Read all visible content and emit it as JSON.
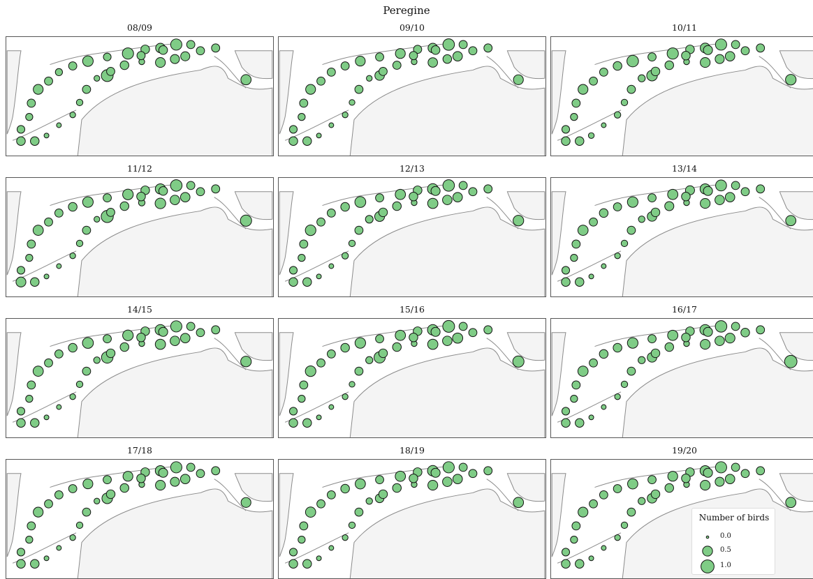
{
  "title": "Peregine",
  "colors": {
    "marker_fill": "#7fcc86",
    "marker_edge": "#111111",
    "land": "#f4f4f4",
    "coast": "#8a8a8a",
    "sea": "#ffffff"
  },
  "legend": {
    "title": "Number of birds",
    "entries": [
      {
        "label": "0.0",
        "value": 0.0
      },
      {
        "label": "0.5",
        "value": 0.5
      },
      {
        "label": "1.0",
        "value": 1.0
      }
    ]
  },
  "chart_data": {
    "type": "bubble-map",
    "title": "Peregine",
    "size_variable": "Number of birds",
    "size_range": [
      0.0,
      1.0
    ],
    "legend_placement": "bottom-right",
    "site_count": 34,
    "panels": [
      {
        "season": "08/09",
        "values": [
          0.35,
          0.35,
          0.25,
          0.2,
          0.3,
          0.5,
          0.3,
          0.2,
          0.3,
          0.6,
          0.25,
          0.7,
          0.35,
          0.45,
          0.7,
          0.3,
          0.4,
          0.5,
          0.1,
          0.8,
          0.3,
          0.15,
          0.1,
          0.05,
          0.05,
          0.1,
          0.3,
          0.35,
          0.3,
          0.35,
          0.4,
          0.3,
          0.3,
          0.55
        ]
      },
      {
        "season": "09/10",
        "values": [
          0.35,
          0.35,
          0.25,
          0.2,
          0.3,
          0.5,
          0.3,
          0.3,
          0.3,
          0.5,
          0.3,
          0.5,
          0.3,
          0.45,
          0.75,
          0.3,
          0.35,
          0.45,
          0.1,
          0.45,
          0.3,
          0.1,
          0.1,
          0.05,
          0.05,
          0.1,
          0.3,
          0.3,
          0.3,
          0.35,
          0.45,
          0.3,
          0.3,
          0.5
        ]
      },
      {
        "season": "10/11",
        "values": [
          0.35,
          0.35,
          0.25,
          0.2,
          0.3,
          0.5,
          0.3,
          0.3,
          0.35,
          0.75,
          0.3,
          0.7,
          0.35,
          0.5,
          0.7,
          0.3,
          0.4,
          0.5,
          0.1,
          0.6,
          0.3,
          0.15,
          0.15,
          0.05,
          0.1,
          0.2,
          0.35,
          0.35,
          0.35,
          0.4,
          0.45,
          0.3,
          0.3,
          0.6
        ]
      },
      {
        "season": "11/12",
        "values": [
          0.5,
          0.35,
          0.25,
          0.2,
          0.3,
          0.55,
          0.3,
          0.3,
          0.35,
          0.6,
          0.3,
          0.6,
          0.35,
          0.55,
          0.75,
          0.3,
          0.45,
          0.6,
          0.15,
          0.85,
          0.3,
          0.15,
          0.1,
          0.05,
          0.05,
          0.1,
          0.3,
          0.35,
          0.35,
          0.35,
          0.45,
          0.3,
          0.3,
          0.7
        ]
      },
      {
        "season": "12/13",
        "values": [
          0.35,
          0.35,
          0.25,
          0.2,
          0.3,
          0.6,
          0.3,
          0.3,
          0.35,
          0.65,
          0.3,
          0.55,
          0.35,
          0.6,
          0.75,
          0.3,
          0.45,
          0.55,
          0.1,
          0.5,
          0.3,
          0.15,
          0.15,
          0.05,
          0.05,
          0.25,
          0.35,
          0.35,
          0.35,
          0.4,
          0.45,
          0.3,
          0.3,
          0.6
        ]
      },
      {
        "season": "13/14",
        "values": [
          0.35,
          0.35,
          0.25,
          0.2,
          0.3,
          0.55,
          0.3,
          0.35,
          0.3,
          0.6,
          0.3,
          0.55,
          0.4,
          0.55,
          0.65,
          0.3,
          0.45,
          0.5,
          0.1,
          0.45,
          0.3,
          0.15,
          0.1,
          0.05,
          0.05,
          0.15,
          0.35,
          0.4,
          0.35,
          0.4,
          0.45,
          0.3,
          0.3,
          0.55
        ]
      },
      {
        "season": "14/15",
        "values": [
          0.35,
          0.35,
          0.25,
          0.2,
          0.3,
          0.55,
          0.3,
          0.3,
          0.35,
          0.65,
          0.3,
          0.6,
          0.35,
          0.6,
          0.7,
          0.3,
          0.45,
          0.55,
          0.1,
          0.75,
          0.3,
          0.15,
          0.1,
          0.05,
          0.05,
          0.15,
          0.35,
          0.35,
          0.35,
          0.4,
          0.45,
          0.3,
          0.3,
          0.6
        ]
      },
      {
        "season": "15/16",
        "values": [
          0.35,
          0.35,
          0.25,
          0.2,
          0.3,
          0.6,
          0.3,
          0.3,
          0.35,
          0.6,
          0.3,
          0.55,
          0.35,
          0.6,
          0.8,
          0.3,
          0.45,
          0.55,
          0.1,
          0.7,
          0.3,
          0.1,
          0.1,
          0.05,
          0.05,
          0.2,
          0.35,
          0.35,
          0.35,
          0.4,
          0.55,
          0.3,
          0.3,
          0.7
        ]
      },
      {
        "season": "16/17",
        "values": [
          0.35,
          0.35,
          0.25,
          0.2,
          0.3,
          0.55,
          0.3,
          0.35,
          0.35,
          0.6,
          0.3,
          0.55,
          0.35,
          0.6,
          0.75,
          0.3,
          0.45,
          0.5,
          0.1,
          0.45,
          0.3,
          0.15,
          0.1,
          0.05,
          0.05,
          0.2,
          0.35,
          0.35,
          0.35,
          0.4,
          0.5,
          0.35,
          0.3,
          0.9
        ]
      },
      {
        "season": "17/18",
        "values": [
          0.35,
          0.35,
          0.25,
          0.2,
          0.3,
          0.5,
          0.3,
          0.3,
          0.3,
          0.5,
          0.3,
          0.5,
          0.35,
          0.55,
          0.7,
          0.3,
          0.4,
          0.5,
          0.1,
          0.6,
          0.3,
          0.15,
          0.1,
          0.05,
          0.05,
          0.1,
          0.35,
          0.35,
          0.35,
          0.4,
          0.45,
          0.3,
          0.3,
          0.5
        ]
      },
      {
        "season": "18/19",
        "values": [
          0.35,
          0.35,
          0.25,
          0.2,
          0.3,
          0.55,
          0.3,
          0.3,
          0.35,
          0.55,
          0.3,
          0.55,
          0.35,
          0.6,
          0.7,
          0.3,
          0.45,
          0.5,
          0.1,
          0.35,
          0.3,
          0.15,
          0.1,
          0.05,
          0.05,
          0.15,
          0.35,
          0.35,
          0.35,
          0.4,
          0.45,
          0.3,
          0.3,
          0.55
        ]
      },
      {
        "season": "19/20",
        "values": [
          0.35,
          0.35,
          0.25,
          0.2,
          0.3,
          0.5,
          0.3,
          0.3,
          0.3,
          0.55,
          0.3,
          0.5,
          0.35,
          0.55,
          0.7,
          0.3,
          0.4,
          0.5,
          0.1,
          0.45,
          0.3,
          0.15,
          0.1,
          0.05,
          0.05,
          0.2,
          0.35,
          0.35,
          0.35,
          0.4,
          0.45,
          0.3,
          0.3,
          0.55
        ]
      }
    ]
  }
}
